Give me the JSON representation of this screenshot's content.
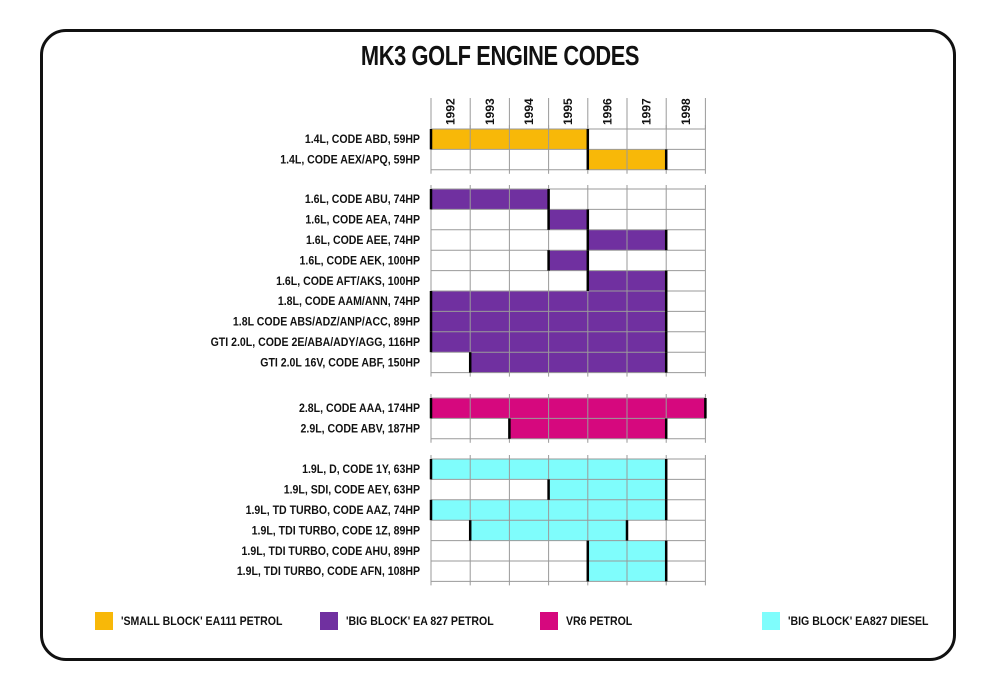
{
  "chart_data": {
    "type": "table",
    "title": "MK3 GOLF ENGINE CODES",
    "years": [
      "1992",
      "1993",
      "1994",
      "1995",
      "1996",
      "1997",
      "1998"
    ],
    "groups": [
      {
        "legend": "'SMALL BLOCK' EA111 PETROL",
        "color": "#F8B808",
        "rows": [
          {
            "label": "1.4L, CODE ABD, 59HP",
            "start": 1992,
            "end": 1996
          },
          {
            "label": "1.4L, CODE AEX/APQ, 59HP",
            "start": 1996,
            "end": 1998
          }
        ]
      },
      {
        "legend": "'BIG BLOCK' EA 827 PETROL",
        "color": "#7030A0",
        "rows": [
          {
            "label": "1.6L, CODE ABU, 74HP",
            "start": 1992,
            "end": 1995
          },
          {
            "label": "1.6L, CODE AEA, 74HP",
            "start": 1995,
            "end": 1996
          },
          {
            "label": "1.6L, CODE AEE, 74HP",
            "start": 1996,
            "end": 1998
          },
          {
            "label": "1.6L, CODE AEK, 100HP",
            "start": 1995,
            "end": 1996
          },
          {
            "label": "1.6L, CODE AFT/AKS, 100HP",
            "start": 1996,
            "end": 1998
          },
          {
            "label": "1.8L, CODE AAM/ANN, 74HP",
            "start": 1992,
            "end": 1998
          },
          {
            "label": "1.8L CODE ABS/ADZ/ANP/ACC, 89HP",
            "start": 1992,
            "end": 1998
          },
          {
            "label": "GTI 2.0L, CODE 2E/ABA/ADY/AGG, 116HP",
            "start": 1992,
            "end": 1998
          },
          {
            "label": "GTI 2.0L 16V, CODE ABF, 150HP",
            "start": 1993,
            "end": 1998
          }
        ]
      },
      {
        "legend": "VR6 PETROL",
        "color": "#D6087E",
        "rows": [
          {
            "label": "2.8L, CODE AAA, 174HP",
            "start": 1992,
            "end": 1999
          },
          {
            "label": "2.9L, CODE ABV, 187HP",
            "start": 1994,
            "end": 1998
          }
        ]
      },
      {
        "legend": "'BIG BLOCK' EA827 DIESEL",
        "color": "#7FFDFC",
        "rows": [
          {
            "label": "1.9L, D, CODE 1Y, 63HP",
            "start": 1992,
            "end": 1998
          },
          {
            "label": "1.9L, SDI, CODE AEY, 63HP",
            "start": 1995,
            "end": 1998
          },
          {
            "label": "1.9L, TD TURBO, CODE AAZ, 74HP",
            "start": 1992,
            "end": 1998
          },
          {
            "label": "1.9L, TDI TURBO, CODE 1Z, 89HP",
            "start": 1993,
            "end": 1997
          },
          {
            "label": "1.9L, TDI TURBO, CODE AHU, 89HP",
            "start": 1996,
            "end": 1998
          },
          {
            "label": "1.9L, TDI TURBO, CODE AFN, 108HP",
            "start": 1996,
            "end": 1998
          }
        ]
      }
    ]
  }
}
